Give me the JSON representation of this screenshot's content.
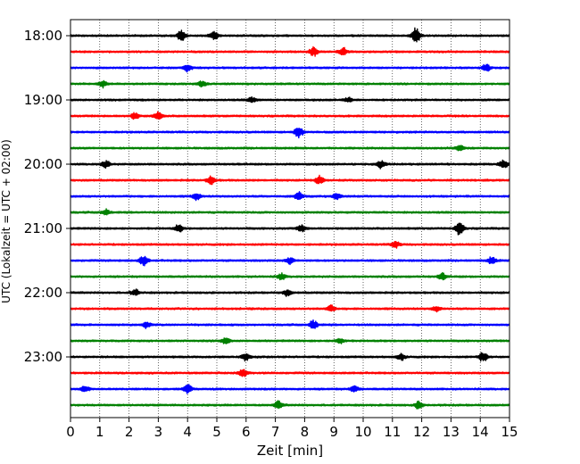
{
  "chart_data": {
    "type": "line",
    "title": "",
    "xlabel": "Zeit  [min]",
    "ylabel": "UTC (Lokalzeit = UTC + 02:00)",
    "xlim": [
      0,
      15
    ],
    "x_ticks": [
      0,
      1,
      2,
      3,
      4,
      5,
      6,
      7,
      8,
      9,
      10,
      11,
      12,
      13,
      14,
      15
    ],
    "y_tick_labels": [
      "18:00",
      "19:00",
      "20:00",
      "21:00",
      "22:00",
      "23:00"
    ],
    "grid": "vertical dotted lines at each minute",
    "series_colors": [
      "#000000",
      "#ff0000",
      "#0000ff",
      "#008000"
    ],
    "traces": [
      {
        "start": "18:00",
        "color": "#000000",
        "bursts": [
          {
            "x": 3.8,
            "amp": 1.4
          },
          {
            "x": 4.9,
            "amp": 1.0
          },
          {
            "x": 11.8,
            "amp": 1.8
          }
        ]
      },
      {
        "start": "18:15",
        "color": "#ff0000",
        "bursts": [
          {
            "x": 8.3,
            "amp": 1.0
          },
          {
            "x": 9.3,
            "amp": 0.9
          }
        ]
      },
      {
        "start": "18:30",
        "color": "#0000ff",
        "bursts": [
          {
            "x": 4.0,
            "amp": 0.9
          },
          {
            "x": 14.2,
            "amp": 0.9
          }
        ]
      },
      {
        "start": "18:45",
        "color": "#008000",
        "bursts": [
          {
            "x": 1.1,
            "amp": 0.8
          },
          {
            "x": 4.5,
            "amp": 0.7
          }
        ]
      },
      {
        "start": "19:00",
        "color": "#000000",
        "bursts": [
          {
            "x": 6.2,
            "amp": 0.6
          },
          {
            "x": 9.5,
            "amp": 0.5
          }
        ]
      },
      {
        "start": "19:15",
        "color": "#ff0000",
        "bursts": [
          {
            "x": 2.2,
            "amp": 0.7
          },
          {
            "x": 3.0,
            "amp": 0.9
          }
        ]
      },
      {
        "start": "19:30",
        "color": "#0000ff",
        "bursts": [
          {
            "x": 7.8,
            "amp": 1.3
          }
        ]
      },
      {
        "start": "19:45",
        "color": "#008000",
        "bursts": [
          {
            "x": 13.3,
            "amp": 0.7
          }
        ]
      },
      {
        "start": "20:00",
        "color": "#000000",
        "bursts": [
          {
            "x": 1.2,
            "amp": 0.9
          },
          {
            "x": 10.6,
            "amp": 0.9
          },
          {
            "x": 14.8,
            "amp": 1.0
          }
        ]
      },
      {
        "start": "20:15",
        "color": "#ff0000",
        "bursts": [
          {
            "x": 4.8,
            "amp": 0.9
          },
          {
            "x": 8.5,
            "amp": 0.9
          }
        ]
      },
      {
        "start": "20:30",
        "color": "#0000ff",
        "bursts": [
          {
            "x": 4.3,
            "amp": 0.8
          },
          {
            "x": 7.8,
            "amp": 0.9
          },
          {
            "x": 9.1,
            "amp": 0.8
          }
        ]
      },
      {
        "start": "20:45",
        "color": "#008000",
        "bursts": [
          {
            "x": 1.2,
            "amp": 0.6
          }
        ]
      },
      {
        "start": "21:00",
        "color": "#000000",
        "bursts": [
          {
            "x": 3.7,
            "amp": 0.8
          },
          {
            "x": 7.9,
            "amp": 0.8
          },
          {
            "x": 13.3,
            "amp": 1.5
          }
        ]
      },
      {
        "start": "21:15",
        "color": "#ff0000",
        "bursts": [
          {
            "x": 11.1,
            "amp": 0.8
          }
        ]
      },
      {
        "start": "21:30",
        "color": "#0000ff",
        "bursts": [
          {
            "x": 2.5,
            "amp": 1.2
          },
          {
            "x": 7.5,
            "amp": 0.7
          },
          {
            "x": 14.4,
            "amp": 0.8
          }
        ]
      },
      {
        "start": "21:45",
        "color": "#008000",
        "bursts": [
          {
            "x": 7.2,
            "amp": 0.7
          },
          {
            "x": 12.7,
            "amp": 0.7
          }
        ]
      },
      {
        "start": "22:00",
        "color": "#000000",
        "bursts": [
          {
            "x": 2.2,
            "amp": 0.7
          },
          {
            "x": 7.4,
            "amp": 0.7
          }
        ]
      },
      {
        "start": "22:15",
        "color": "#ff0000",
        "bursts": [
          {
            "x": 8.9,
            "amp": 0.7
          },
          {
            "x": 12.5,
            "amp": 0.6
          }
        ]
      },
      {
        "start": "22:30",
        "color": "#0000ff",
        "bursts": [
          {
            "x": 2.6,
            "amp": 0.7
          },
          {
            "x": 8.3,
            "amp": 1.0
          }
        ]
      },
      {
        "start": "22:45",
        "color": "#008000",
        "bursts": [
          {
            "x": 5.3,
            "amp": 0.7
          },
          {
            "x": 9.2,
            "amp": 0.7
          }
        ]
      },
      {
        "start": "23:00",
        "color": "#000000",
        "bursts": [
          {
            "x": 6.0,
            "amp": 0.8
          },
          {
            "x": 11.3,
            "amp": 0.7
          },
          {
            "x": 14.1,
            "amp": 1.2
          }
        ]
      },
      {
        "start": "23:15",
        "color": "#ff0000",
        "bursts": [
          {
            "x": 5.9,
            "amp": 0.9
          }
        ]
      },
      {
        "start": "23:30",
        "color": "#0000ff",
        "bursts": [
          {
            "x": 0.5,
            "amp": 0.7
          },
          {
            "x": 4.0,
            "amp": 1.0
          },
          {
            "x": 9.7,
            "amp": 0.7
          }
        ]
      },
      {
        "start": "23:45",
        "color": "#008000",
        "bursts": [
          {
            "x": 7.1,
            "amp": 0.9
          },
          {
            "x": 11.9,
            "amp": 0.8
          }
        ]
      }
    ]
  }
}
